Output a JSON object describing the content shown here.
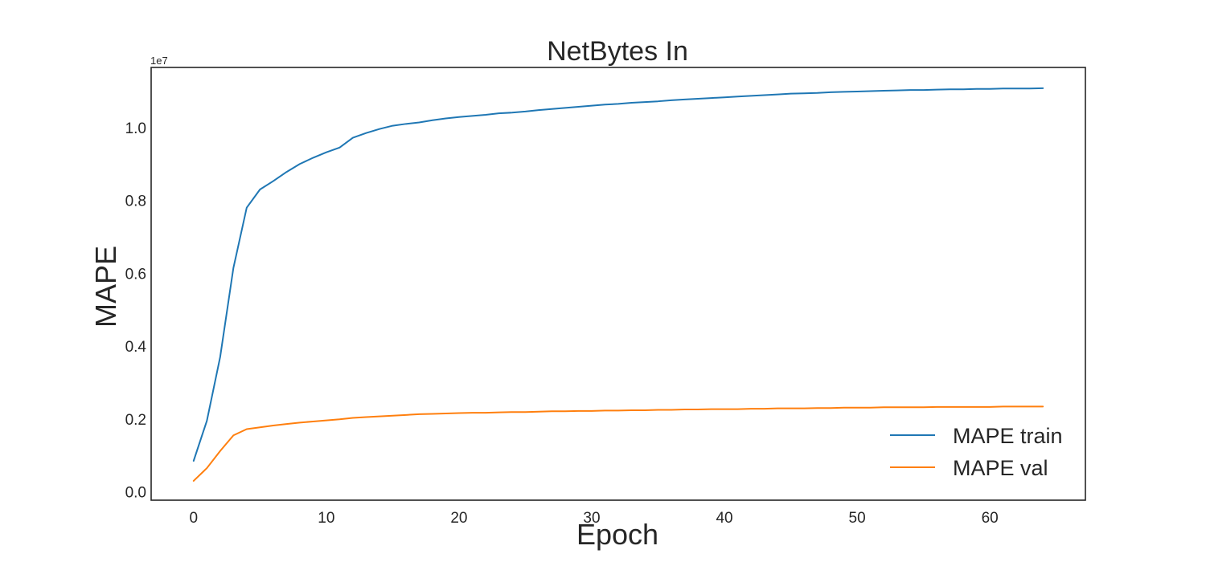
{
  "chart_data": {
    "type": "line",
    "title": "NetBytes In",
    "xlabel": "Epoch",
    "ylabel": "MAPE",
    "y_offset_label": "1e7",
    "xlim": [
      -3.2,
      67.2
    ],
    "ylim": [
      -0.023,
      1.165
    ],
    "x_ticks": [
      0,
      10,
      20,
      30,
      40,
      50,
      60
    ],
    "y_ticks": [
      0.0,
      0.2,
      0.4,
      0.6,
      0.8,
      1.0
    ],
    "y_tick_labels": [
      "0.0",
      "0.2",
      "0.4",
      "0.6",
      "0.8",
      "1.0"
    ],
    "grid": false,
    "legend_position": "lower-right",
    "x": [
      0,
      1,
      2,
      3,
      4,
      5,
      6,
      7,
      8,
      9,
      10,
      11,
      12,
      13,
      14,
      15,
      16,
      17,
      18,
      19,
      20,
      21,
      22,
      23,
      24,
      25,
      26,
      27,
      28,
      29,
      30,
      31,
      32,
      33,
      34,
      35,
      36,
      37,
      38,
      39,
      40,
      41,
      42,
      43,
      44,
      45,
      46,
      47,
      48,
      49,
      50,
      51,
      52,
      53,
      54,
      55,
      56,
      57,
      58,
      59,
      60,
      61,
      62,
      63,
      64
    ],
    "series": [
      {
        "name": "MAPE train",
        "color": "#1f77b4",
        "values": [
          0.085,
          0.195,
          0.37,
          0.615,
          0.78,
          0.83,
          0.853,
          0.878,
          0.9,
          0.917,
          0.932,
          0.945,
          0.972,
          0.985,
          0.996,
          1.005,
          1.01,
          1.014,
          1.02,
          1.025,
          1.029,
          1.032,
          1.035,
          1.039,
          1.041,
          1.044,
          1.048,
          1.051,
          1.054,
          1.057,
          1.06,
          1.063,
          1.065,
          1.068,
          1.07,
          1.072,
          1.075,
          1.077,
          1.079,
          1.081,
          1.083,
          1.085,
          1.087,
          1.089,
          1.091,
          1.093,
          1.094,
          1.095,
          1.097,
          1.098,
          1.099,
          1.1,
          1.101,
          1.102,
          1.103,
          1.103,
          1.104,
          1.105,
          1.105,
          1.106,
          1.106,
          1.107,
          1.107,
          1.107,
          1.108
        ]
      },
      {
        "name": "MAPE val",
        "color": "#ff7f0e",
        "values": [
          0.03,
          0.065,
          0.112,
          0.155,
          0.172,
          0.177,
          0.182,
          0.186,
          0.19,
          0.193,
          0.196,
          0.199,
          0.203,
          0.205,
          0.207,
          0.209,
          0.211,
          0.213,
          0.214,
          0.215,
          0.216,
          0.217,
          0.217,
          0.218,
          0.219,
          0.219,
          0.22,
          0.221,
          0.221,
          0.222,
          0.222,
          0.223,
          0.223,
          0.224,
          0.224,
          0.225,
          0.225,
          0.226,
          0.226,
          0.227,
          0.227,
          0.227,
          0.228,
          0.228,
          0.229,
          0.229,
          0.229,
          0.23,
          0.23,
          0.231,
          0.231,
          0.231,
          0.232,
          0.232,
          0.232,
          0.232,
          0.233,
          0.233,
          0.233,
          0.233,
          0.233,
          0.234,
          0.234,
          0.234,
          0.234
        ]
      }
    ]
  }
}
